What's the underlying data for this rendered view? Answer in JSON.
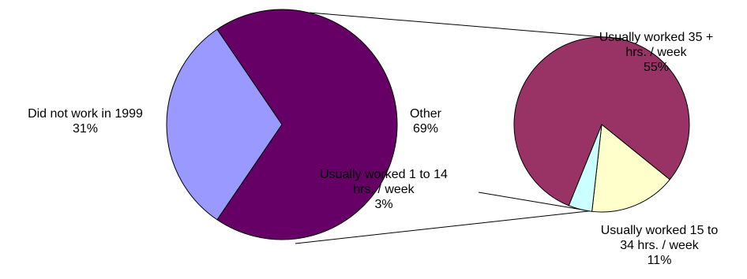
{
  "chart_data": {
    "type": "bar-of-pie",
    "colors": {
      "did_not_work": "#9999ff",
      "other": "#660066",
      "worked_35_plus": "#993366",
      "worked_15_34": "#ffffcc",
      "worked_1_14": "#ccffff",
      "outline": "#000000",
      "connector": "#000000"
    },
    "main_pie": {
      "slices": [
        {
          "label_lines": [
            "Did not work in 1999"
          ],
          "value": 31,
          "percent_label": "31%"
        },
        {
          "label_lines": [
            "Other"
          ],
          "value": 69,
          "percent_label": "69%"
        }
      ]
    },
    "secondary_pie": {
      "slices": [
        {
          "label_lines": [
            "Usually worked 35 +",
            "hrs. / week"
          ],
          "value": 55,
          "percent_label": "55%"
        },
        {
          "label_lines": [
            "Usually worked 15 to",
            "34 hrs. / week"
          ],
          "value": 11,
          "percent_label": "11%"
        },
        {
          "label_lines": [
            "Usually worked 1 to 14",
            "hrs. / week"
          ],
          "value": 3,
          "percent_label": "3%"
        }
      ]
    }
  }
}
